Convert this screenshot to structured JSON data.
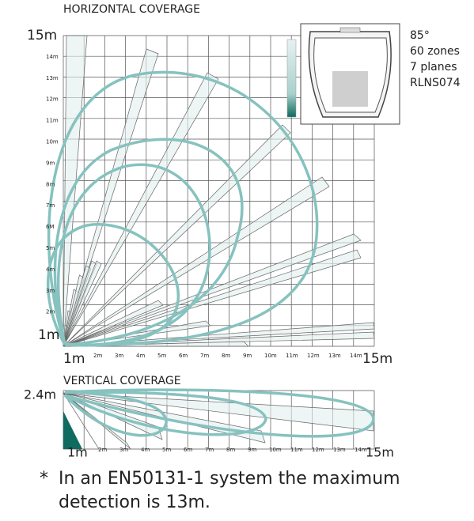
{
  "horizontal": {
    "title": "HORIZONTAL COVERAGE",
    "y_top_label": "15m",
    "y_labels": [
      "14m",
      "13m",
      "12m",
      "11m",
      "10m",
      "9m",
      "8m",
      "7m",
      "6M",
      "5m",
      "4m",
      "3m",
      "2m"
    ],
    "y_bottom_label": "1m",
    "x_labels": [
      "1m",
      "2m",
      "3m",
      "4m",
      "5m",
      "6m",
      "7m",
      "8m",
      "9m",
      "10m",
      "11m",
      "12m",
      "13m",
      "14m",
      "15m"
    ]
  },
  "specs": [
    "85°",
    "60 zones",
    "7 planes",
    "RLNS074"
  ],
  "vertical": {
    "title": "VERTICAL COVERAGE",
    "y_label": "2.4m",
    "x_labels": [
      "1m",
      "2m",
      "3m",
      "4m",
      "5m",
      "6m",
      "7m",
      "8m",
      "9m",
      "10m",
      "11m",
      "12m",
      "13m",
      "14m",
      "15m"
    ]
  },
  "footnote": {
    "marker": "*",
    "lines": [
      "In an EN50131-1 system the maximum",
      "detection is 13m."
    ]
  }
}
